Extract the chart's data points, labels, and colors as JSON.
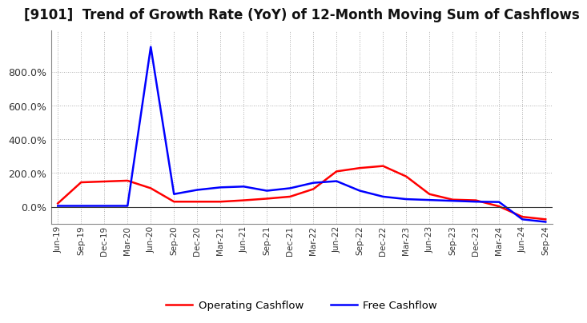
{
  "title": "[9101]  Trend of Growth Rate (YoY) of 12-Month Moving Sum of Cashflows",
  "title_fontsize": 12,
  "background_color": "#ffffff",
  "grid_color": "#999999",
  "labels": [
    "Jun-19",
    "Sep-19",
    "Dec-19",
    "Mar-20",
    "Jun-20",
    "Sep-20",
    "Dec-20",
    "Mar-21",
    "Jun-21",
    "Sep-21",
    "Dec-21",
    "Mar-22",
    "Jun-22",
    "Sep-22",
    "Dec-22",
    "Mar-23",
    "Jun-23",
    "Sep-23",
    "Dec-23",
    "Mar-24",
    "Jun-24",
    "Sep-24"
  ],
  "operating_cashflow": [
    0.2,
    1.45,
    1.5,
    1.55,
    1.1,
    0.3,
    0.3,
    0.3,
    0.38,
    0.48,
    0.6,
    1.05,
    2.1,
    2.3,
    2.42,
    1.8,
    0.75,
    0.42,
    0.38,
    0.02,
    -0.6,
    -0.75
  ],
  "free_cashflow": [
    0.05,
    0.05,
    0.05,
    0.05,
    9.5,
    0.75,
    1.0,
    1.15,
    1.2,
    0.95,
    1.1,
    1.42,
    1.52,
    0.95,
    0.6,
    0.45,
    0.4,
    0.35,
    0.3,
    0.28,
    -0.75,
    -0.9
  ],
  "operating_color": "#ff0000",
  "free_color": "#0000ff",
  "ylim_min": -1.0,
  "ylim_max": 10.5,
  "yticks": [
    0,
    2,
    4,
    6,
    8
  ],
  "ytick_labels": [
    "0.0%",
    "200.0%",
    "400.0%",
    "600.0%",
    "800.0%"
  ],
  "legend_labels": [
    "Operating Cashflow",
    "Free Cashflow"
  ]
}
